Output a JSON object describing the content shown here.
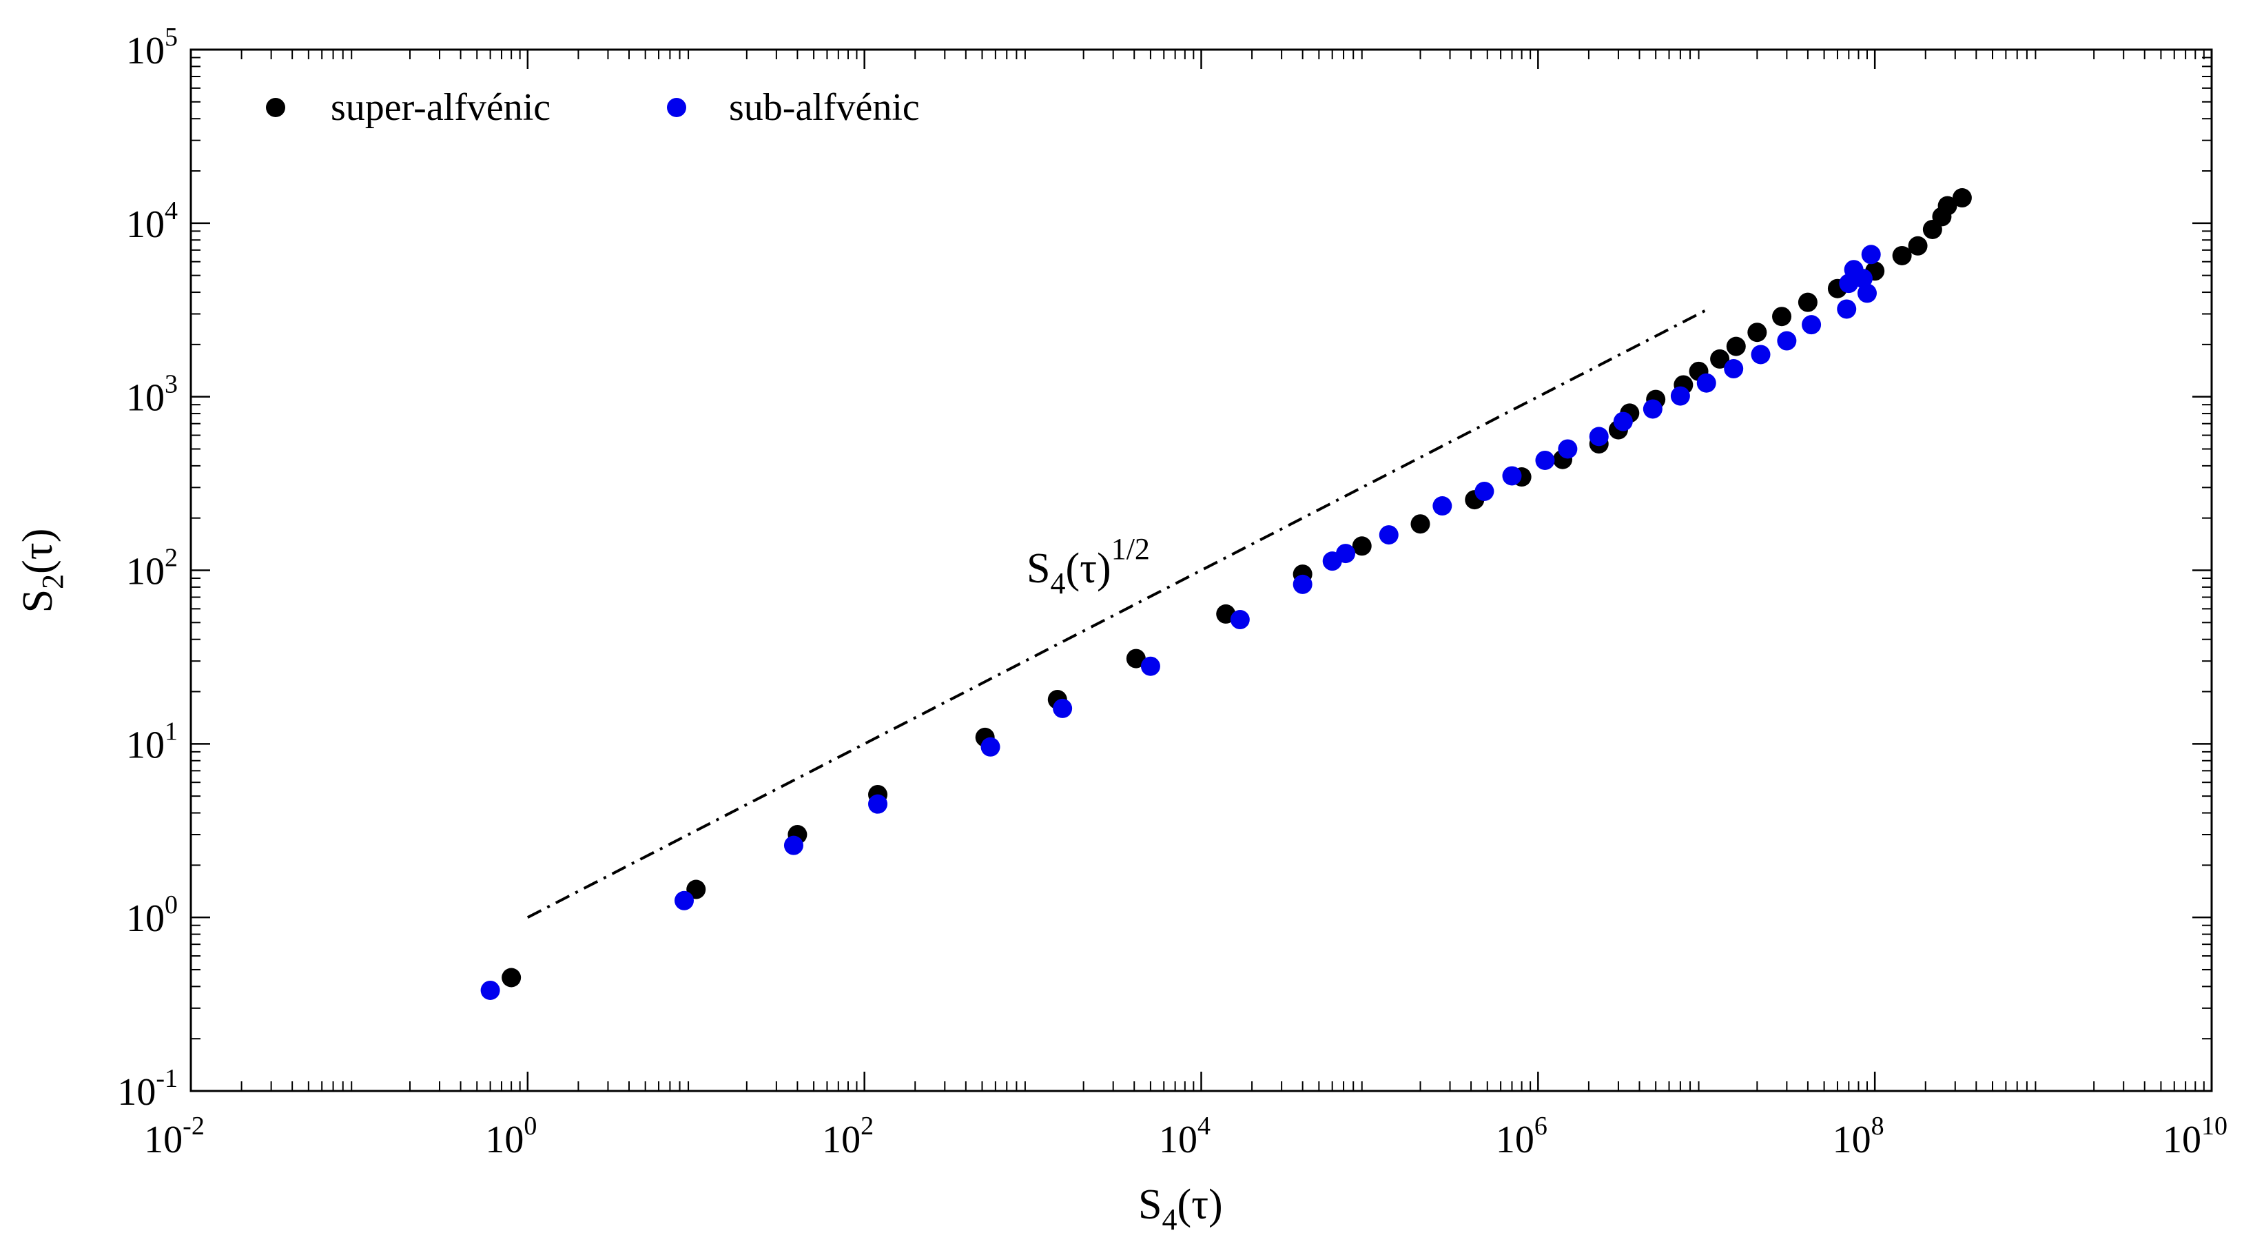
{
  "chart_data": {
    "type": "scatter",
    "xscale": "log",
    "yscale": "log",
    "xlim": [
      0.01,
      10000000000
    ],
    "ylim": [
      0.1,
      100000
    ],
    "xlabel": {
      "main": "S",
      "sub": "4",
      "rest": "(τ)"
    },
    "ylabel": {
      "main": "S",
      "sub": "2",
      "rest": "(τ)"
    },
    "xticks": [
      {
        "base": "10",
        "exp": "-2",
        "value": 0.01
      },
      {
        "base": "10",
        "exp": "0",
        "value": 1
      },
      {
        "base": "10",
        "exp": "2",
        "value": 100
      },
      {
        "base": "10",
        "exp": "4",
        "value": 10000
      },
      {
        "base": "10",
        "exp": "6",
        "value": 1000000
      },
      {
        "base": "10",
        "exp": "8",
        "value": 100000000
      },
      {
        "base": "10",
        "exp": "10",
        "value": 10000000000
      }
    ],
    "yticks": [
      {
        "base": "10",
        "exp": "-1",
        "value": 0.1
      },
      {
        "base": "10",
        "exp": "0",
        "value": 1
      },
      {
        "base": "10",
        "exp": "1",
        "value": 10
      },
      {
        "base": "10",
        "exp": "2",
        "value": 100
      },
      {
        "base": "10",
        "exp": "3",
        "value": 1000
      },
      {
        "base": "10",
        "exp": "4",
        "value": 10000
      },
      {
        "base": "10",
        "exp": "5",
        "value": 100000
      }
    ],
    "legend": {
      "placement": "top-left"
    },
    "series": [
      {
        "name": "super-alfvénic",
        "color": "#000000",
        "points": [
          [
            0.8,
            0.45
          ],
          [
            10,
            1.45
          ],
          [
            40,
            3.0
          ],
          [
            120,
            5.1
          ],
          [
            520,
            10.9
          ],
          [
            1400,
            18
          ],
          [
            4100,
            31
          ],
          [
            14000,
            56
          ],
          [
            40000,
            95
          ],
          [
            90000,
            138
          ],
          [
            200000,
            185
          ],
          [
            420000,
            255
          ],
          [
            800000,
            345
          ],
          [
            1400000,
            435
          ],
          [
            2300000,
            535
          ],
          [
            3000000,
            645
          ],
          [
            3500000,
            805
          ],
          [
            5000000,
            965
          ],
          [
            7300000,
            1170
          ],
          [
            9000000,
            1400
          ],
          [
            12000000,
            1650
          ],
          [
            15000000,
            1950
          ],
          [
            20000000,
            2350
          ],
          [
            28000000,
            2900
          ],
          [
            40000000,
            3500
          ],
          [
            60000000,
            4200
          ],
          [
            100000000,
            5300
          ],
          [
            145000000,
            6500
          ],
          [
            180000000,
            7400
          ],
          [
            220000000,
            9200
          ],
          [
            250000000,
            10900
          ],
          [
            270000000,
            12600
          ],
          [
            330000000,
            14000
          ]
        ]
      },
      {
        "name": "sub-alfvénic",
        "color": "#0000ee",
        "points": [
          [
            0.6,
            0.38
          ],
          [
            8.5,
            1.25
          ],
          [
            38,
            2.6
          ],
          [
            120,
            4.5
          ],
          [
            560,
            9.6
          ],
          [
            1500,
            16
          ],
          [
            5000,
            28
          ],
          [
            17000,
            52
          ],
          [
            40000,
            83
          ],
          [
            60000,
            113
          ],
          [
            72000,
            125
          ],
          [
            130000,
            160
          ],
          [
            270000,
            235
          ],
          [
            480000,
            285
          ],
          [
            700000,
            350
          ],
          [
            1100000,
            430
          ],
          [
            1500000,
            500
          ],
          [
            2300000,
            590
          ],
          [
            3200000,
            720
          ],
          [
            4800000,
            850
          ],
          [
            7000000,
            1010
          ],
          [
            10000000,
            1200
          ],
          [
            14500000,
            1450
          ],
          [
            21000000,
            1750
          ],
          [
            30000000,
            2100
          ],
          [
            42000000,
            2600
          ],
          [
            68000000,
            3200
          ],
          [
            90000000,
            3950
          ],
          [
            70000000,
            4500
          ],
          [
            75000000,
            5400
          ],
          [
            85000000,
            4800
          ],
          [
            95000000,
            6600
          ]
        ]
      }
    ],
    "reference_line": {
      "style": "dash-dot",
      "x": [
        1,
        10000000
      ],
      "y": [
        1,
        3162
      ],
      "label": {
        "main": "S",
        "sub": "4",
        "rest": "(τ)",
        "sup": "1/2"
      }
    }
  }
}
